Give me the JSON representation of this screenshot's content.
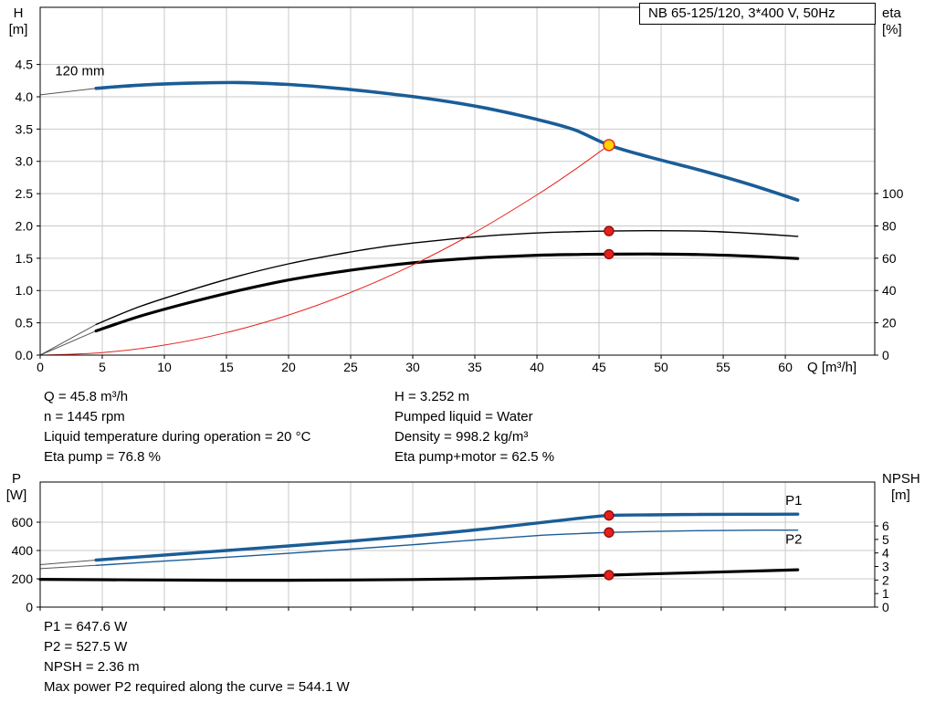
{
  "colors": {
    "blue": "#1a5d97",
    "red": "#e8201d",
    "darkred": "#8f100d",
    "yellow": "#ffd400",
    "black": "#000000",
    "grid": "#c9c9c9",
    "lead": "#555555"
  },
  "info": {
    "left": [
      "Q = 45.8 m³/h",
      "n = 1445 rpm",
      "Liquid temperature during operation = 20 °C",
      "Eta pump = 76.8 %"
    ],
    "right": [
      "H = 3.252 m",
      "Pumped liquid = Water",
      "Density = 998.2 kg/m³",
      "Eta pump+motor = 62.5 %"
    ]
  },
  "footer": [
    "P1 = 647.6 W",
    "P2 = 527.5 W",
    "NPSH = 2.36 m",
    "Max power P2 required along the curve = 544.1 W"
  ],
  "chart_data": [
    {
      "type": "line",
      "title": "NB 65-125/120, 3*400 V, 50Hz",
      "xlabel": "Q [m³/h]",
      "ylabel_left": [
        "H",
        "[m]"
      ],
      "ylabel_right": [
        "eta",
        "[%]"
      ],
      "xlim": [
        0,
        67.2
      ],
      "ylim_left": [
        0,
        5.385
      ],
      "ylim_right": [
        0,
        215.3
      ],
      "x_ticks": [
        0,
        5,
        10,
        15,
        20,
        25,
        30,
        35,
        40,
        45,
        50,
        55,
        60
      ],
      "y_left_ticks": [
        "0.0",
        "0.5",
        "1.0",
        "1.5",
        "2.0",
        "2.5",
        "3.0",
        "3.5",
        "4.0",
        "4.5"
      ],
      "y_right_ticks": [
        "0",
        "20",
        "40",
        "60",
        "80",
        "100"
      ],
      "grid": true,
      "series": [
        {
          "name": "eta-pump-curve",
          "axis": "right",
          "color": "black",
          "width": 1.4,
          "lead": [
            0,
            0
          ],
          "points": [
            [
              4.5,
              19
            ],
            [
              8,
              30
            ],
            [
              12,
              40
            ],
            [
              16,
              49
            ],
            [
              20,
              56.5
            ],
            [
              24,
              62.5
            ],
            [
              28,
              67.5
            ],
            [
              32,
              71
            ],
            [
              36,
              73.8
            ],
            [
              40,
              75.6
            ],
            [
              43,
              76.4
            ],
            [
              45.8,
              76.8
            ],
            [
              49,
              77
            ],
            [
              53,
              76.8
            ],
            [
              57,
              75.5
            ],
            [
              61,
              73.5
            ]
          ]
        },
        {
          "name": "eta-pump-motor-curve",
          "axis": "right",
          "color": "black",
          "width": 3.2,
          "lead": [
            0,
            0
          ],
          "points": [
            [
              4.5,
              15
            ],
            [
              8,
              24
            ],
            [
              12,
              32.5
            ],
            [
              16,
              40
            ],
            [
              20,
              46.5
            ],
            [
              24,
              51.5
            ],
            [
              28,
              55.5
            ],
            [
              32,
              58.5
            ],
            [
              36,
              60.5
            ],
            [
              40,
              61.8
            ],
            [
              43,
              62.3
            ],
            [
              45.8,
              62.5
            ],
            [
              49,
              62.6
            ],
            [
              53,
              62.3
            ],
            [
              57,
              61.3
            ],
            [
              61,
              59.8
            ]
          ]
        },
        {
          "name": "system-curve",
          "axis": "left",
          "color": "red",
          "width": 1,
          "points": [
            [
              0,
              0
            ],
            [
              5,
              0.039
            ],
            [
              10,
              0.155
            ],
            [
              15,
              0.349
            ],
            [
              20,
              0.62
            ],
            [
              25,
              0.969
            ],
            [
              30,
              1.395
            ],
            [
              35,
              1.9
            ],
            [
              40,
              2.48
            ],
            [
              43,
              2.867
            ],
            [
              45.8,
              3.252
            ]
          ]
        },
        {
          "name": "pump-curve-120mm",
          "axis": "left",
          "color": "blue",
          "width": 3.6,
          "lead": [
            0,
            4.03
          ],
          "points": [
            [
              4.5,
              4.13
            ],
            [
              8,
              4.18
            ],
            [
              12,
              4.21
            ],
            [
              16,
              4.22
            ],
            [
              20,
              4.19
            ],
            [
              24,
              4.13
            ],
            [
              28,
              4.05
            ],
            [
              32,
              3.95
            ],
            [
              36,
              3.82
            ],
            [
              40,
              3.65
            ],
            [
              43,
              3.49
            ],
            [
              45.8,
              3.252
            ],
            [
              49,
              3.07
            ],
            [
              53,
              2.87
            ],
            [
              57,
              2.65
            ],
            [
              61,
              2.4
            ]
          ]
        }
      ],
      "markers": [
        {
          "name": "eta-pump-point",
          "axis": "right",
          "x": 45.8,
          "y": 76.8,
          "fill": "red",
          "stroke": "darkred",
          "r": 5
        },
        {
          "name": "eta-pump-motor-point",
          "axis": "right",
          "x": 45.8,
          "y": 62.5,
          "fill": "red",
          "stroke": "darkred",
          "r": 5
        },
        {
          "name": "duty-point",
          "axis": "left",
          "x": 45.8,
          "y": 3.252,
          "fill": "yellow",
          "stroke": "red",
          "r": 6
        }
      ],
      "annotations": [
        {
          "name": "impeller-diameter-label",
          "text": "120 mm",
          "axis": "left",
          "x": 1.2,
          "y": 4.33,
          "color": "black"
        }
      ]
    },
    {
      "type": "line",
      "title": "",
      "xlabel": "",
      "ylabel_left": [
        "P",
        "[W]"
      ],
      "ylabel_right": [
        "NPSH",
        "[m]"
      ],
      "xlim": [
        0,
        67.2
      ],
      "ylim_left": [
        0,
        884
      ],
      "ylim_right": [
        0,
        9.24
      ],
      "x_ticks": [
        0,
        5,
        10,
        15,
        20,
        25,
        30,
        35,
        40,
        45,
        50,
        55,
        60
      ],
      "y_left_ticks": [
        "0",
        "200",
        "400",
        "600"
      ],
      "y_right_ticks": [
        "0",
        "1",
        "2",
        "3",
        "4",
        "5",
        "6"
      ],
      "grid": true,
      "series": [
        {
          "name": "p2-curve",
          "axis": "left",
          "color": "blue",
          "width": 1.4,
          "lead": [
            0,
            272
          ],
          "points": [
            [
              4.5,
              295
            ],
            [
              10,
              325
            ],
            [
              15,
              352
            ],
            [
              20,
              380
            ],
            [
              25,
              410
            ],
            [
              30,
              441
            ],
            [
              35,
              474
            ],
            [
              40,
              505
            ],
            [
              43,
              518
            ],
            [
              45.8,
              527.5
            ],
            [
              49,
              534
            ],
            [
              53,
              540
            ],
            [
              57,
              543
            ],
            [
              61,
              544
            ]
          ]
        },
        {
          "name": "p1-curve",
          "axis": "left",
          "color": "blue",
          "width": 3.4,
          "lead": [
            0,
            300
          ],
          "points": [
            [
              4.5,
              332
            ],
            [
              10,
              368
            ],
            [
              15,
              400
            ],
            [
              20,
              432
            ],
            [
              25,
              466
            ],
            [
              30,
              503
            ],
            [
              35,
              545
            ],
            [
              40,
              594
            ],
            [
              43,
              624
            ],
            [
              45.8,
              647.6
            ],
            [
              49,
              652
            ],
            [
              53,
              655
            ],
            [
              57,
              656
            ],
            [
              61,
              657
            ]
          ]
        },
        {
          "name": "npsh-curve",
          "axis": "right",
          "color": "black",
          "width": 3.2,
          "points": [
            [
              0,
              2.05
            ],
            [
              5,
              2.02
            ],
            [
              10,
              2.0
            ],
            [
              15,
              1.98
            ],
            [
              20,
              1.98
            ],
            [
              25,
              2.0
            ],
            [
              30,
              2.04
            ],
            [
              35,
              2.1
            ],
            [
              40,
              2.2
            ],
            [
              43,
              2.28
            ],
            [
              45.8,
              2.36
            ],
            [
              49,
              2.45
            ],
            [
              53,
              2.55
            ],
            [
              57,
              2.65
            ],
            [
              61,
              2.76
            ]
          ]
        }
      ],
      "markers": [
        {
          "name": "p1-point",
          "axis": "left",
          "x": 45.8,
          "y": 647.6,
          "fill": "red",
          "stroke": "darkred",
          "r": 5
        },
        {
          "name": "p2-point",
          "axis": "left",
          "x": 45.8,
          "y": 527.5,
          "fill": "red",
          "stroke": "darkred",
          "r": 5
        },
        {
          "name": "npsh-point",
          "axis": "right",
          "x": 45.8,
          "y": 2.36,
          "fill": "red",
          "stroke": "darkred",
          "r": 5
        }
      ],
      "annotations": [
        {
          "name": "p1-label",
          "text": "P1",
          "axis": "left",
          "x": 60,
          "y": 723,
          "color": "blue"
        },
        {
          "name": "p2-label",
          "text": "P2",
          "axis": "left",
          "x": 60,
          "y": 450,
          "color": "blue"
        }
      ]
    }
  ]
}
